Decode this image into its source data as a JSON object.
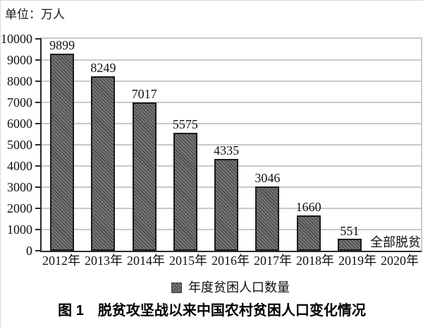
{
  "figure": {
    "unit_label": "单位：万人",
    "caption": "图 1　脱贫攻坚战以来中国农村贫困人口变化情况"
  },
  "chart_data": {
    "type": "bar",
    "title": "图 1 脱贫攻坚战以来中国农村贫困人口变化情况",
    "unit_label": "单位：万人",
    "categories": [
      "2012年",
      "2013年",
      "2014年",
      "2015年",
      "2016年",
      "2017年",
      "2018年",
      "2019年",
      "2020年"
    ],
    "values": [
      9899,
      8249,
      7017,
      5575,
      4335,
      3046,
      1660,
      551,
      0
    ],
    "bar_labels": [
      "9899",
      "8249",
      "7017",
      "5575",
      "4335",
      "3046",
      "1660",
      "551",
      "全部脱贫"
    ],
    "zero_value_annotation": "全部脱贫",
    "legend": [
      "年度贫困人口数量"
    ],
    "legend_position": "bottom",
    "ylim": [
      0,
      10000
    ],
    "ytick_step": 1000,
    "grid": true,
    "colors": {
      "bar_fill": "#787878",
      "bar_hatch": "#4a4a4a",
      "bar_border": "#1b1b1b",
      "gridline": "#c9c9c9",
      "axis": "#2b2b2b",
      "text": "#111111"
    },
    "hatch": "diagonal-forward"
  }
}
